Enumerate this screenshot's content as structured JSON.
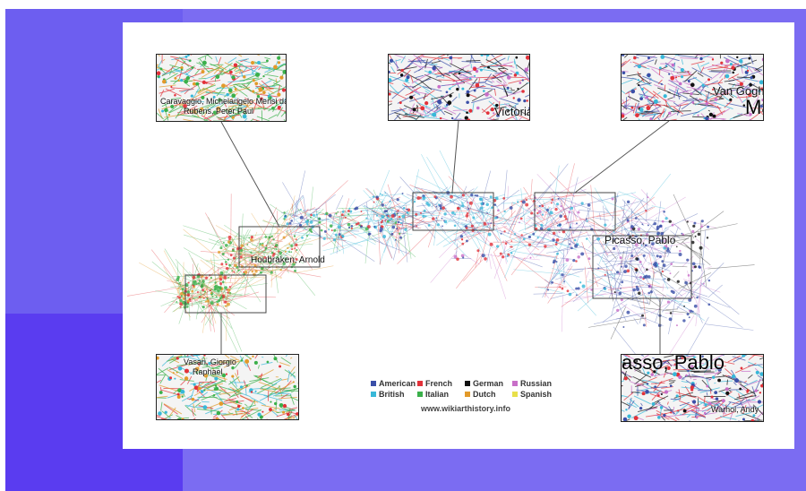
{
  "colors": {
    "frame": "#7b6cf2",
    "left_panel": "#6d5ef0",
    "left_band": "#5a3cf0",
    "card": "#ffffff"
  },
  "legend": [
    {
      "label": "American",
      "color": "#3a4fa8"
    },
    {
      "label": "French",
      "color": "#e2323a"
    },
    {
      "label": "German",
      "color": "#111111"
    },
    {
      "label": "Russian",
      "color": "#c86fc8"
    },
    {
      "label": "British",
      "color": "#38b8d8"
    },
    {
      "label": "Italian",
      "color": "#3ab04a"
    },
    {
      "label": "Dutch",
      "color": "#e29a2a"
    },
    {
      "label": "Spanish",
      "color": "#e8e04a"
    }
  ],
  "source": "www.wikiarthistory.info",
  "map_labels": {
    "houbraken": "Houbraken, Arnold",
    "picasso": "Picasso, Pablo"
  },
  "insets": {
    "top_left": {
      "labels": [
        "Caravaggio, Michelangelo Merisi da",
        "Rubens, Peter Paul"
      ]
    },
    "top_center": {
      "labels": [
        "Victoria"
      ]
    },
    "top_right": {
      "labels": [
        "Van Gogh, Vincent",
        "Ma"
      ]
    },
    "bottom_left": {
      "labels": [
        "Vasari, Giorgio",
        "Raphael"
      ]
    },
    "bottom_right": {
      "labels": [
        "asso, Pablo",
        "Warhol, Andy"
      ]
    }
  }
}
